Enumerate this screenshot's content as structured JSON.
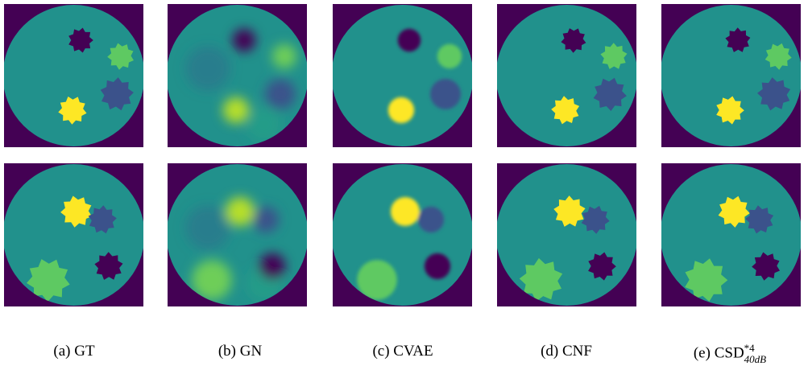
{
  "captions": [
    {
      "label": "(a)",
      "name": "GT"
    },
    {
      "label": "(b)",
      "name": "GN"
    },
    {
      "label": "(c)",
      "name": "CVAE"
    },
    {
      "label": "(d)",
      "name": "CNF"
    },
    {
      "label": "(e)",
      "name": "CSD",
      "sup": "*4",
      "sub": "40dB"
    }
  ]
}
